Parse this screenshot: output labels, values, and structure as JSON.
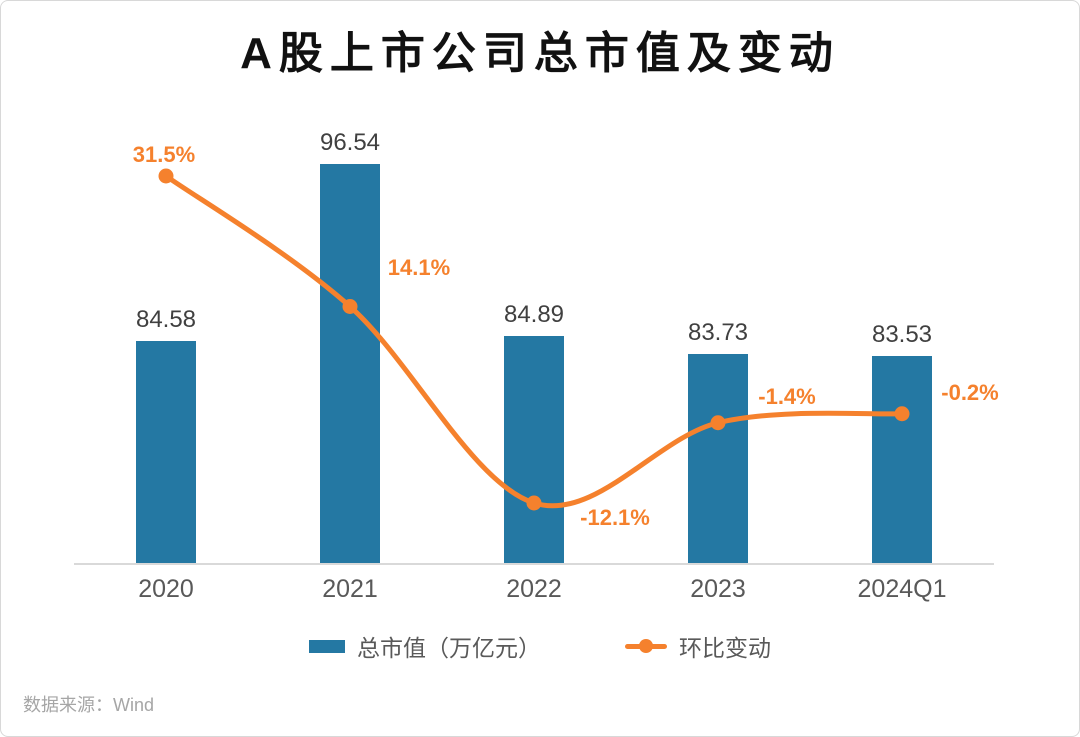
{
  "title": "A股上市公司总市值及变动",
  "legend": {
    "bar_label": "总市值（万亿元）",
    "line_label": "环比变动"
  },
  "source": "数据来源：Wind",
  "colors": {
    "bar": "#2478A3",
    "line": "#F5812D",
    "value_label": "#404040",
    "pct_label": "#F5812D",
    "axis": "#D9D9D9",
    "tick_label": "#595959"
  },
  "chart_data": {
    "type": "bar",
    "subtype": "bar+line combo",
    "title": "A股上市公司总市值及变动",
    "categories": [
      "2020",
      "2021",
      "2022",
      "2023",
      "2024Q1"
    ],
    "series": [
      {
        "name": "总市值（万亿元）",
        "type": "bar",
        "values": [
          84.58,
          96.54,
          84.89,
          83.73,
          83.53
        ],
        "labels": [
          "84.58",
          "96.54",
          "84.89",
          "83.73",
          "83.53"
        ],
        "color": "#2478A3"
      },
      {
        "name": "环比变动",
        "type": "line",
        "values": [
          31.5,
          14.1,
          -12.1,
          -1.4,
          -0.2
        ],
        "labels": [
          "31.5%",
          "14.1%",
          "-12.1%",
          "-1.4%",
          "-0.2%"
        ],
        "color": "#F5812D",
        "smooth": true
      }
    ],
    "bar_axis": {
      "min": 69.5,
      "max": 100,
      "visible": false
    },
    "pct_axis": {
      "min": -20,
      "max": 40,
      "visible": false
    },
    "grid": false,
    "legend_position": "bottom",
    "xlabel": "",
    "ylabel": ""
  }
}
